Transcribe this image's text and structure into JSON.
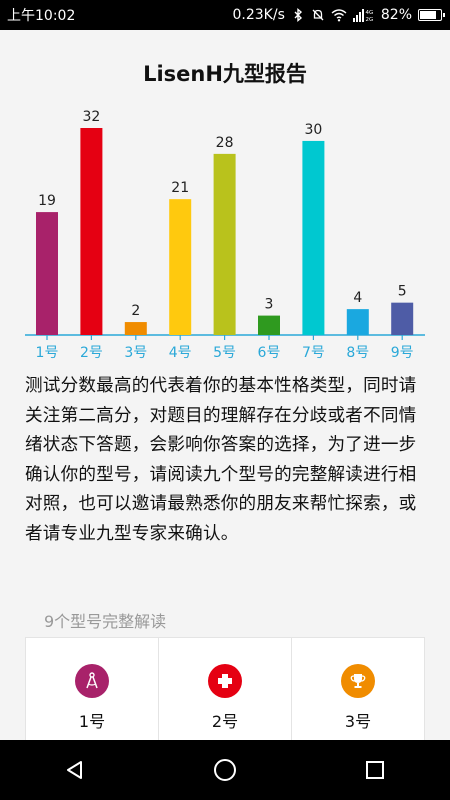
{
  "status_bar": {
    "time": "上午10:02",
    "network_speed": "0.23K/s",
    "battery_percent": "82%",
    "battery_level": 0.82,
    "icons": [
      "bluetooth-icon",
      "mute-icon",
      "wifi-icon",
      "signal-icon",
      "battery-icon"
    ]
  },
  "page": {
    "title": "LisenH九型报告"
  },
  "chart_data": {
    "type": "bar",
    "categories": [
      "1号",
      "2号",
      "3号",
      "4号",
      "5号",
      "6号",
      "7号",
      "8号",
      "9号"
    ],
    "values": [
      19,
      32,
      2,
      21,
      28,
      3,
      30,
      4,
      5
    ],
    "colors": [
      "#a8226a",
      "#e50012",
      "#f08c00",
      "#ffc90e",
      "#b9c21c",
      "#2f9a1f",
      "#00c8d0",
      "#1aa8e0",
      "#4e5ca6"
    ],
    "ylim": [
      0,
      32
    ],
    "title": "",
    "xlabel": "",
    "ylabel": "",
    "grid": false,
    "axis_color": "#2aa8d8"
  },
  "description": "测试分数最高的代表着你的基本性格类型，同时请关注第二高分，对题目的理解存在分歧或者不同情绪状态下答题，会影响你答案的选择，为了进一步确认你的型号，请阅读九个型号的完整解读进行相对照，也可以邀请最熟悉你的朋友来帮忙探索，或者请专业九型专家来确认。",
  "section": {
    "label": "9个型号完整解读",
    "types": [
      {
        "label": "1号",
        "icon": "compass-icon",
        "color": "#a8226a"
      },
      {
        "label": "2号",
        "icon": "medical-cross-icon",
        "color": "#e50012"
      },
      {
        "label": "3号",
        "icon": "trophy-icon",
        "color": "#f08c00"
      }
    ]
  },
  "nav": {
    "buttons": [
      "back-icon",
      "home-icon",
      "recents-icon"
    ]
  }
}
